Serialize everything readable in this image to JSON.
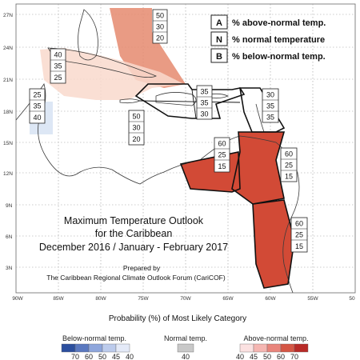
{
  "title": {
    "line1": "Maximum Temperature Outlook",
    "line2": "for the Caribbean",
    "line3": "December 2016 / January - February 2017"
  },
  "prepared": {
    "line1": "Prepared by",
    "line2": "The Caribbean Regional Climate Outlook Forum (CariCOF)"
  },
  "key": [
    {
      "letter": "A",
      "text": "% above-normal temp."
    },
    {
      "letter": "N",
      "text": "% normal temperature"
    },
    {
      "letter": "B",
      "text": "% below-normal temp."
    }
  ],
  "lat_ticks": [
    "27N",
    "24N",
    "21N",
    "18N",
    "15N",
    "12N",
    "9N",
    "6N",
    "3N"
  ],
  "lon_ticks": [
    "90W",
    "85W",
    "80W",
    "75W",
    "70W",
    "65W",
    "60W",
    "55W",
    "50"
  ],
  "region_boxes": [
    {
      "id": "bahamas",
      "A": "50",
      "N": "30",
      "B": "20"
    },
    {
      "id": "cuba",
      "A": "40",
      "N": "35",
      "B": "25"
    },
    {
      "id": "belize",
      "A": "25",
      "N": "35",
      "B": "40"
    },
    {
      "id": "jamaica",
      "A": "50",
      "N": "30",
      "B": "20"
    },
    {
      "id": "hispaniola",
      "A": "35",
      "N": "35",
      "B": "30"
    },
    {
      "id": "lesser-antilles-north",
      "A": "30",
      "N": "35",
      "B": "35"
    },
    {
      "id": "central-america",
      "A": "60",
      "N": "25",
      "B": "15"
    },
    {
      "id": "southern-caribbean",
      "A": "60",
      "N": "25",
      "B": "15"
    },
    {
      "id": "guianas",
      "A": "60",
      "N": "25",
      "B": "15"
    }
  ],
  "legend": {
    "title": "Probability (%) of Most Likely Category",
    "below_label": "Below-normal temp.",
    "normal_label": "Normal temp.",
    "above_label": "Above-normal temp.",
    "below_ticks": [
      "70",
      "60",
      "50",
      "45",
      "40"
    ],
    "normal_ticks": [
      "40"
    ],
    "above_ticks": [
      "40",
      "45",
      "50",
      "60",
      "70"
    ],
    "below_colors": [
      "#2c4f9e",
      "#5a78c0",
      "#8ea6dc",
      "#bccbec",
      "#e4eaf8"
    ],
    "normal_color": "#c8c8c8",
    "above_colors": [
      "#fbe1e1",
      "#f5b6b2",
      "#e9857c",
      "#d55645",
      "#b82a27"
    ]
  }
}
